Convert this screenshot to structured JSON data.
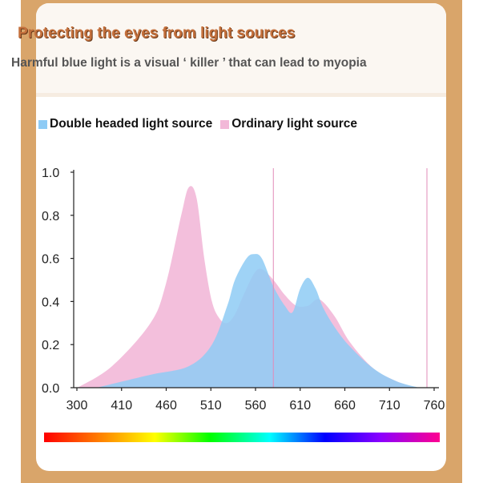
{
  "header": {
    "title": "Protecting the eyes from light sources",
    "subtitle": "Harmful blue light is a visual ‘ killer ’ that can lead to myopia"
  },
  "colors": {
    "double_headed": "#8ecbf5",
    "ordinary": "#f2b8d8",
    "frame": "#d9a56a",
    "title": "#c4703c",
    "guide_line": "#e28bb8"
  },
  "chart_data": {
    "type": "area",
    "title": "",
    "xlabel": "",
    "ylabel": "",
    "xlim": [
      300,
      760
    ],
    "ylim": [
      0,
      1.0
    ],
    "x_ticks": [
      "300",
      "410",
      "460",
      "510",
      "560",
      "610",
      "660",
      "710",
      "760"
    ],
    "y_ticks": [
      "0.0",
      "0.2",
      "0.4",
      "0.6",
      "0.8",
      "1.0"
    ],
    "legend_position": "top",
    "guide_lines_x": [
      560,
      760
    ],
    "series": [
      {
        "name": "Double headed light source",
        "color": "#8ecbf5",
        "x": [
          330,
          400,
          450,
          480,
          500,
          510,
          525,
          535,
          545,
          560,
          575,
          585,
          595,
          605,
          615,
          625,
          640,
          660,
          690,
          720,
          750
        ],
        "y": [
          0.0,
          0.06,
          0.1,
          0.2,
          0.38,
          0.5,
          0.6,
          0.62,
          0.6,
          0.47,
          0.38,
          0.35,
          0.46,
          0.51,
          0.46,
          0.37,
          0.28,
          0.19,
          0.09,
          0.03,
          0.0
        ]
      },
      {
        "name": "Ordinary light source",
        "color": "#f2b8d8",
        "x": [
          305,
          350,
          400,
          420,
          440,
          450,
          460,
          470,
          480,
          490,
          500,
          510,
          520,
          535,
          545,
          560,
          575,
          590,
          605,
          620,
          640,
          660,
          690,
          720,
          745
        ],
        "y": [
          0.0,
          0.1,
          0.3,
          0.48,
          0.8,
          0.93,
          0.88,
          0.6,
          0.4,
          0.32,
          0.3,
          0.34,
          0.42,
          0.53,
          0.55,
          0.5,
          0.43,
          0.38,
          0.38,
          0.41,
          0.33,
          0.21,
          0.09,
          0.03,
          0.0
        ]
      }
    ]
  }
}
